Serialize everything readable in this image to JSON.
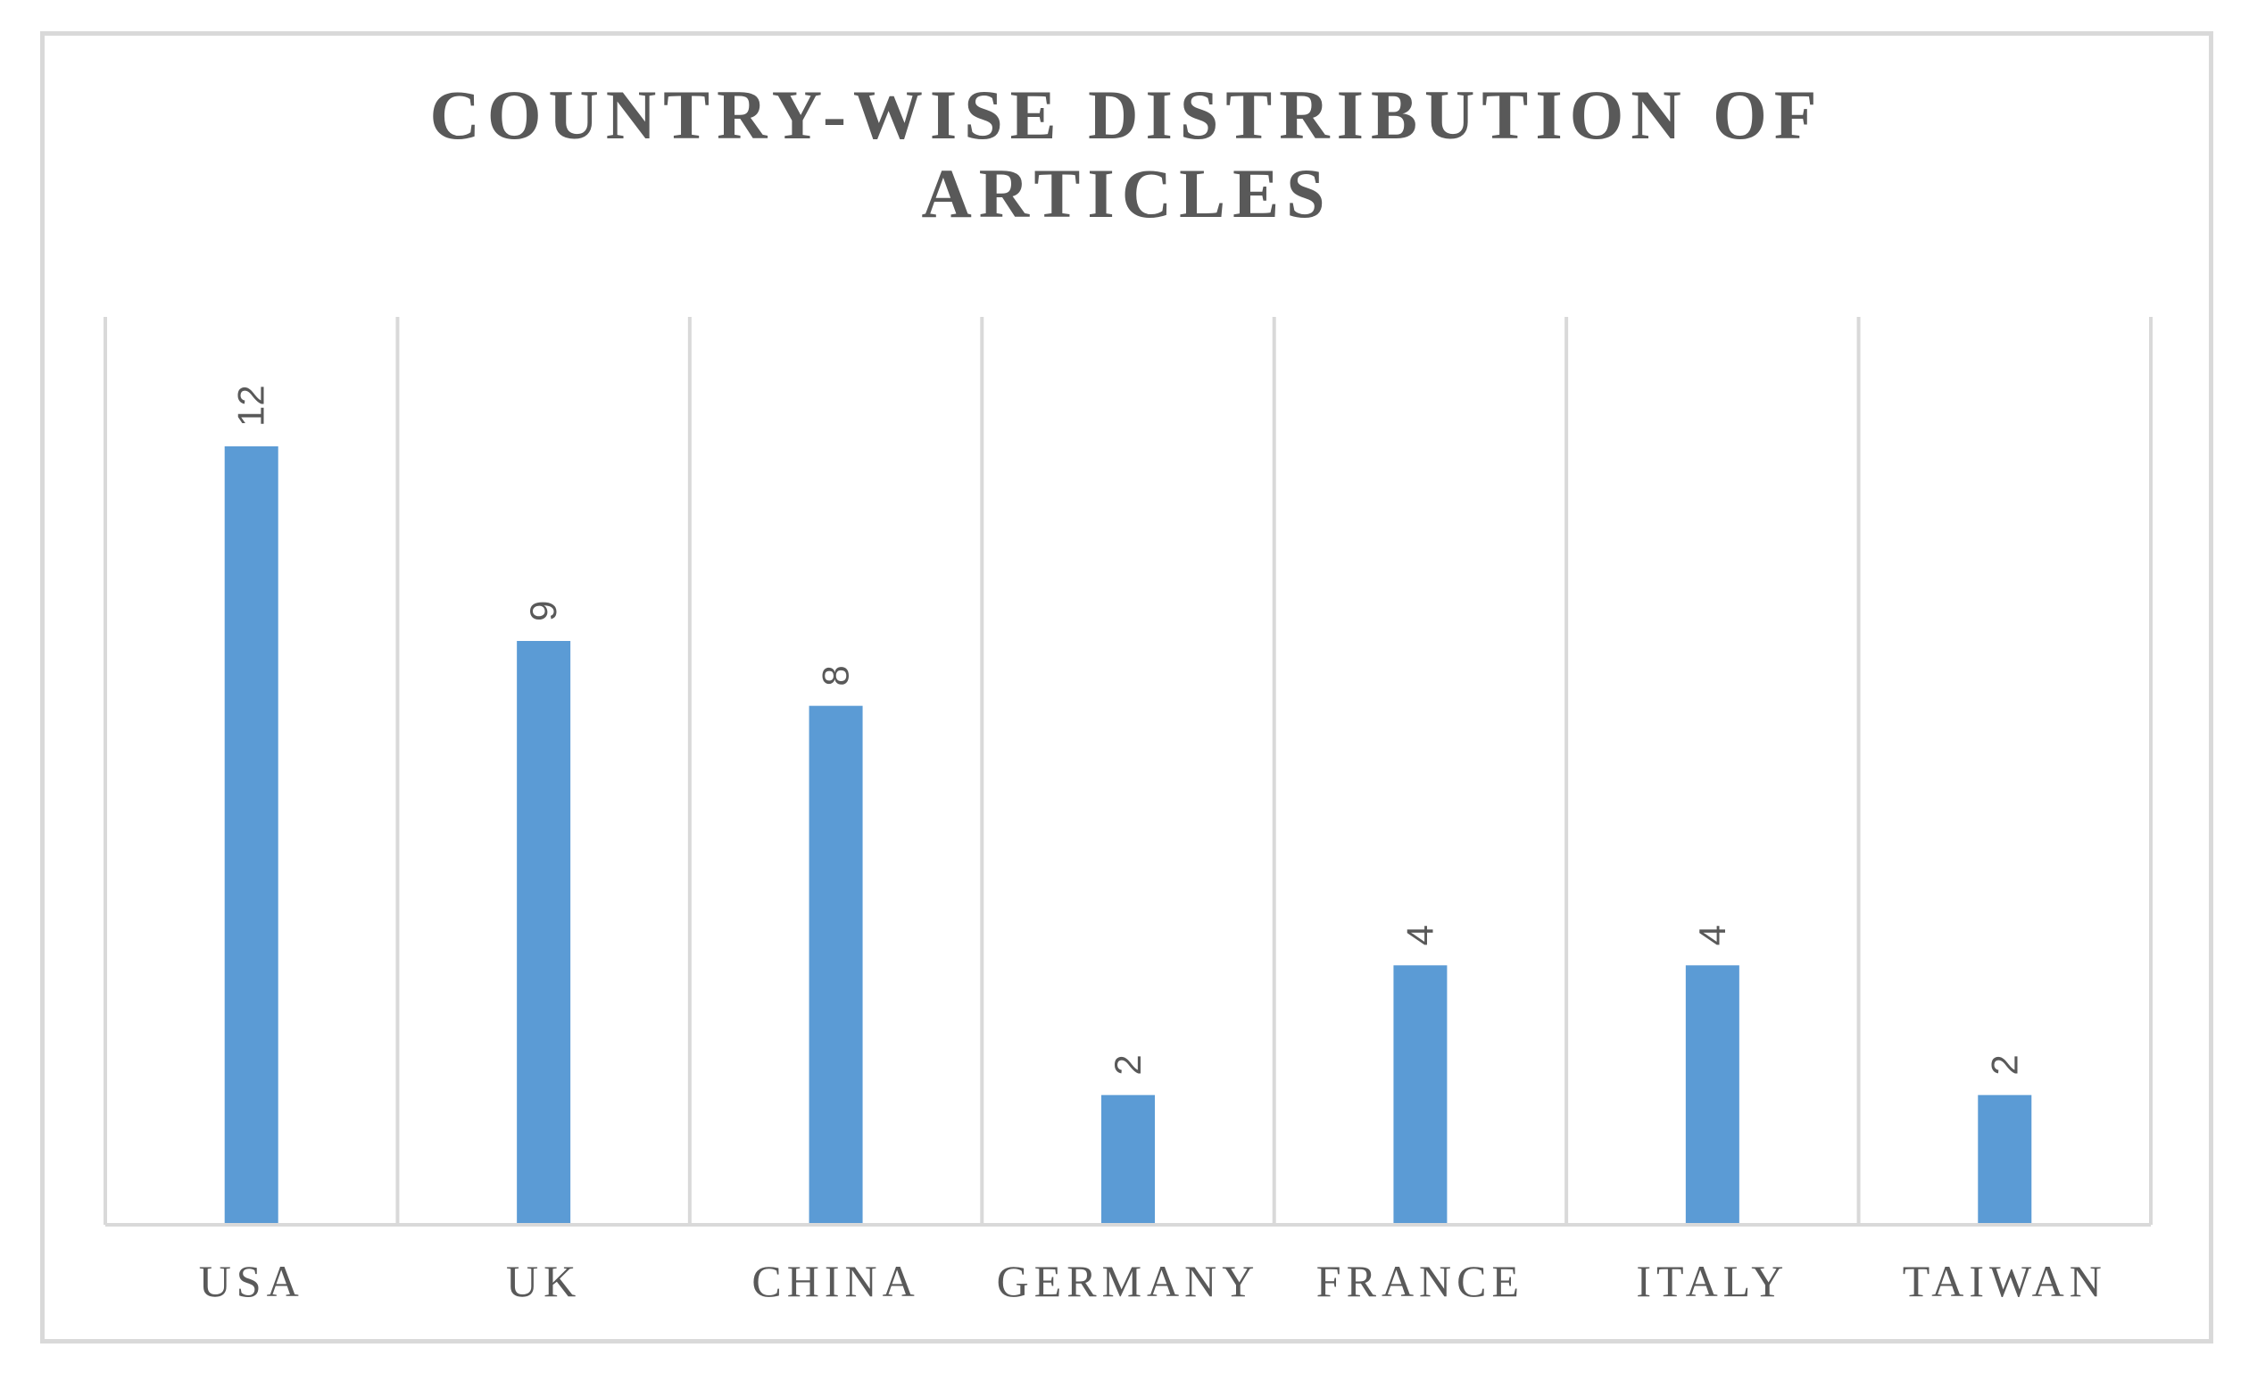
{
  "chart_data": {
    "type": "bar",
    "title": "COUNTRY-WISE DISTRIBUTION OF ARTICLES",
    "title_lines": [
      "COUNTRY-WISE DISTRIBUTION OF",
      "ARTICLES"
    ],
    "categories": [
      "USA",
      "UK",
      "CHINA",
      "GERMANY",
      "FRANCE",
      "ITALY",
      "TAIWAN"
    ],
    "values": [
      12,
      9,
      8,
      2,
      4,
      4,
      2
    ],
    "data_labels": [
      "12",
      "9",
      "8",
      "2",
      "4",
      "4",
      "2"
    ],
    "xlabel": "",
    "ylabel": "",
    "ylim": [
      0,
      14
    ],
    "grid": "vertical category separators",
    "legend": "none",
    "data_label_orientation": "rotated",
    "colors": {
      "bar": "#5b9bd5",
      "grid": "#d9d9d9",
      "text": "#595959",
      "frame": "#d9d9d9"
    }
  }
}
